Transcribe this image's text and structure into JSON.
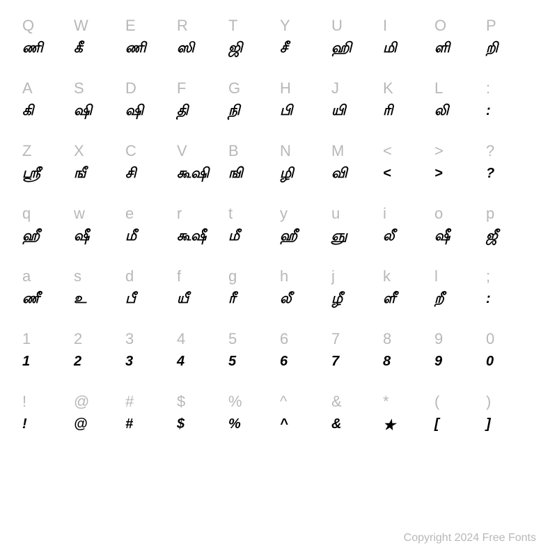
{
  "grid": {
    "label_fontsize": 22,
    "glyph_fontsize": 20,
    "label_color": "#b8b8b8",
    "glyph_color": "#000000",
    "rows": [
      {
        "keys": [
          "Q",
          "W",
          "E",
          "R",
          "T",
          "Y",
          "U",
          "I",
          "O",
          "P"
        ],
        "glyphs": [
          "ணி",
          "கீ",
          "ணி",
          "ஸி",
          "ஜி",
          "சீ",
          "ஹி",
          "மி",
          "ளி",
          "றி"
        ]
      },
      {
        "keys": [
          "A",
          "S",
          "D",
          "F",
          "G",
          "H",
          "J",
          "K",
          "L",
          ":"
        ],
        "glyphs": [
          "கி",
          "ஷி",
          "ஷி",
          "தி",
          "நி",
          "பி",
          "யி",
          "ரி",
          "லி",
          ":"
        ]
      },
      {
        "keys": [
          "Z",
          "X",
          "C",
          "V",
          "B",
          "N",
          "M",
          "<",
          ">",
          "?"
        ],
        "glyphs": [
          "ஸ்ரீ",
          "ஙீ",
          "சி",
          "கூஷி",
          "ஙி",
          "ழி",
          "வி",
          "<",
          ">",
          "?"
        ]
      },
      {
        "keys": [
          "q",
          "w",
          "e",
          "r",
          "t",
          "y",
          "u",
          "i",
          "o",
          "p"
        ],
        "glyphs": [
          "ஹீ",
          "ஷீ",
          "மீ",
          "கூஷீ",
          "மீ",
          "ஹீ",
          "ஞு",
          "லீ",
          "ஷீ",
          "ஜீ"
        ]
      },
      {
        "keys": [
          "a",
          "s",
          "d",
          "f",
          "g",
          "h",
          "j",
          "k",
          "l",
          ";"
        ],
        "glyphs": [
          "ணீ",
          "உ",
          "பீ",
          "யீ",
          "ரீ",
          "லீ",
          "ழீ",
          "ளீ",
          "றீ",
          ":"
        ]
      },
      {
        "keys": [
          "1",
          "2",
          "3",
          "4",
          "5",
          "6",
          "7",
          "8",
          "9",
          "0"
        ],
        "glyphs": [
          "1",
          "2",
          "3",
          "4",
          "5",
          "6",
          "7",
          "8",
          "9",
          "0"
        ]
      },
      {
        "keys": [
          "!",
          "@",
          "#",
          "$",
          "%",
          "^",
          "&",
          "*",
          "(",
          ")"
        ],
        "glyphs": [
          "!",
          "@",
          "#",
          "$",
          "%",
          "^",
          "&",
          "★",
          "[",
          "]"
        ]
      }
    ]
  },
  "footer": {
    "text": "Copyright 2024 Free Fonts",
    "fontsize": 16,
    "color": "#b8b8b8"
  }
}
